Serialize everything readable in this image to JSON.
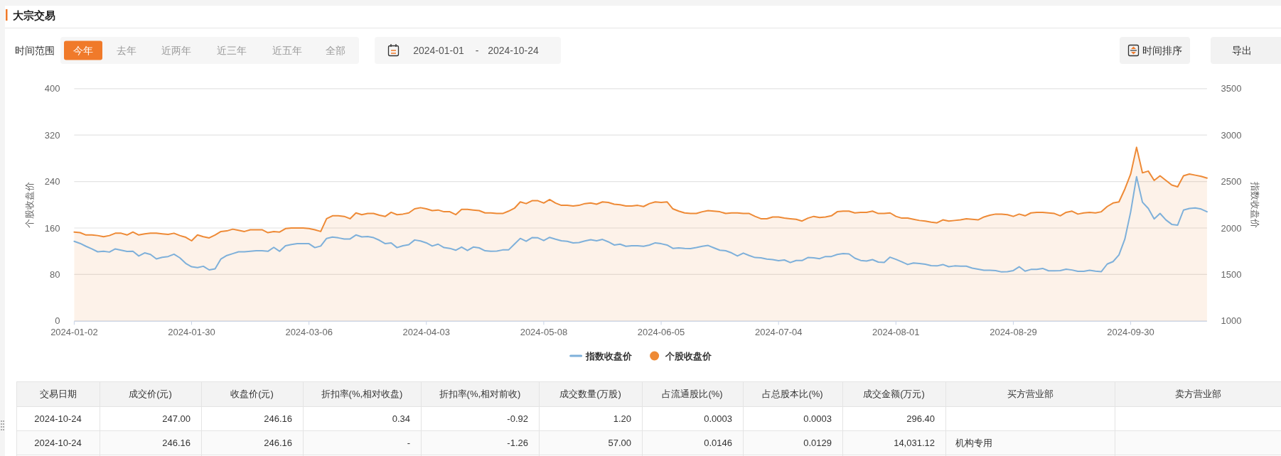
{
  "chart_data": [
    {
      "type": "line",
      "title": "大宗交易",
      "annotations": [
        "时间范围",
        "今年",
        "去年",
        "近两年",
        "近三年",
        "近五年",
        "全部",
        "2024-01-01",
        "-",
        "2024-10-24",
        "时间排序",
        "导出"
      ],
      "categories": [
        "2024-01-02",
        null,
        null,
        null,
        null,
        null,
        null,
        null,
        null,
        null,
        null,
        null,
        null,
        null,
        null,
        null,
        null,
        null,
        null,
        null,
        "2024-01-30",
        null,
        null,
        null,
        null,
        null,
        null,
        null,
        null,
        null,
        null,
        null,
        null,
        null,
        null,
        null,
        null,
        null,
        null,
        null,
        "2024-03-06",
        null,
        null,
        null,
        null,
        null,
        null,
        null,
        null,
        null,
        null,
        null,
        null,
        null,
        null,
        null,
        null,
        null,
        null,
        null,
        "2024-04-03",
        null,
        null,
        null,
        null,
        null,
        null,
        null,
        null,
        null,
        null,
        null,
        null,
        null,
        null,
        null,
        null,
        null,
        null,
        null,
        "2024-05-08",
        null,
        null,
        null,
        null,
        null,
        null,
        null,
        null,
        null,
        null,
        null,
        null,
        null,
        null,
        null,
        null,
        null,
        null,
        null,
        "2024-06-05",
        null,
        null,
        null,
        null,
        null,
        null,
        null,
        null,
        null,
        null,
        null,
        null,
        null,
        null,
        null,
        null,
        null,
        null,
        null,
        "2024-07-04",
        null,
        null,
        null,
        null,
        null,
        null,
        null,
        null,
        null,
        null,
        null,
        null,
        null,
        null,
        null,
        null,
        null,
        null,
        null,
        "2024-08-01",
        null,
        null,
        null,
        null,
        null,
        null,
        null,
        null,
        null,
        null,
        null,
        null,
        null,
        null,
        null,
        null,
        null,
        null,
        null,
        "2024-08-29",
        null,
        null,
        null,
        null,
        null,
        null,
        null,
        null,
        null,
        null,
        null,
        null,
        null,
        null,
        null,
        null,
        null,
        null,
        null,
        "2024-09-30",
        null,
        null,
        null,
        null,
        null,
        null,
        null,
        null,
        null,
        null,
        null,
        null,
        null
      ],
      "series": [
        {
          "name": "指数收盘价",
          "type": "line",
          "axis": "y2",
          "color": "#7eb0da",
          "values": [
            1857,
            1834,
            1803,
            1775,
            1744,
            1749,
            1741,
            1775,
            1761,
            1747,
            1749,
            1699,
            1732,
            1715,
            1667,
            1684,
            1693,
            1718,
            1679,
            1619,
            1583,
            1574,
            1588,
            1549,
            1560,
            1667,
            1704,
            1724,
            1744,
            1744,
            1749,
            1755,
            1755,
            1749,
            1792,
            1749,
            1809,
            1823,
            1831,
            1831,
            1831,
            1789,
            1806,
            1888,
            1902,
            1894,
            1882,
            1882,
            1925,
            1905,
            1908,
            1896,
            1868,
            1831,
            1840,
            1789,
            1809,
            1820,
            1871,
            1860,
            1840,
            1806,
            1826,
            1789,
            1781,
            1761,
            1795,
            1758,
            1795,
            1786,
            1755,
            1749,
            1752,
            1764,
            1764,
            1826,
            1888,
            1857,
            1896,
            1894,
            1865,
            1899,
            1880,
            1863,
            1857,
            1840,
            1843,
            1860,
            1874,
            1863,
            1877,
            1851,
            1817,
            1826,
            1803,
            1809,
            1809,
            1803,
            1817,
            1840,
            1831,
            1817,
            1781,
            1786,
            1781,
            1778,
            1789,
            1803,
            1812,
            1786,
            1761,
            1755,
            1732,
            1699,
            1730,
            1704,
            1682,
            1679,
            1665,
            1659,
            1648,
            1656,
            1628,
            1650,
            1650,
            1682,
            1679,
            1670,
            1693,
            1693,
            1715,
            1724,
            1721,
            1675,
            1651,
            1645,
            1660,
            1633,
            1630,
            1686,
            1663,
            1636,
            1607,
            1624,
            1618,
            1610,
            1595,
            1592,
            1607,
            1583,
            1592,
            1589,
            1589,
            1568,
            1557,
            1545,
            1545,
            1542,
            1527,
            1530,
            1542,
            1583,
            1536,
            1554,
            1554,
            1565,
            1539,
            1539,
            1542,
            1557,
            1548,
            1533,
            1533,
            1545,
            1536,
            1530,
            1612,
            1639,
            1710,
            1880,
            2175,
            2552,
            2278,
            2210,
            2098,
            2157,
            2087,
            2039,
            2031,
            2193,
            2210,
            2216,
            2204,
            2175
          ]
        },
        {
          "name": "个股收盘价",
          "type": "area",
          "color": "#ee8a36",
          "values": [
            153,
            152,
            148,
            148,
            147,
            145,
            147,
            151,
            151,
            148,
            153,
            148,
            150,
            151,
            151,
            150,
            149,
            151,
            147,
            144,
            138,
            148,
            145,
            143,
            148,
            154,
            155,
            158,
            156,
            154,
            157,
            157,
            157,
            152,
            154,
            153,
            159,
            160,
            160,
            160,
            159,
            157,
            154,
            176,
            181,
            181,
            180,
            176,
            186,
            183,
            185,
            185,
            182,
            180,
            187,
            183,
            184,
            186,
            193,
            195,
            193,
            190,
            191,
            188,
            188,
            183,
            192,
            192,
            191,
            190,
            186,
            186,
            185,
            185,
            189,
            194,
            205,
            202,
            207,
            207,
            203,
            209,
            203,
            199,
            199,
            198,
            199,
            202,
            203,
            201,
            205,
            204,
            201,
            200,
            198,
            198,
            199,
            197,
            202,
            205,
            204,
            205,
            193,
            189,
            186,
            185,
            185,
            188,
            190,
            189,
            188,
            185,
            186,
            186,
            185,
            185,
            180,
            176,
            176,
            179,
            179,
            177,
            176,
            175,
            172,
            177,
            180,
            178,
            179,
            181,
            188,
            189,
            189,
            186,
            187,
            187,
            189,
            185,
            185,
            186,
            180,
            177,
            177,
            175,
            173,
            172,
            170,
            169,
            174,
            172,
            173,
            174,
            176,
            175,
            174,
            179,
            182,
            184,
            184,
            183,
            180,
            184,
            181,
            186,
            187,
            187,
            186,
            185,
            181,
            187,
            189,
            184,
            186,
            187,
            186,
            188,
            197,
            203,
            205,
            227,
            253,
            299,
            255,
            258,
            242,
            250,
            242,
            234,
            231,
            250,
            253,
            251,
            249,
            246
          ]
        }
      ],
      "ylabel": "个股收盘价",
      "y2label": "指数收盘价",
      "ylim": [
        0,
        400
      ],
      "yticks": [
        0,
        80,
        160,
        240,
        320,
        400
      ],
      "y2lim": [
        1000,
        3500
      ],
      "y2ticks": [
        1000,
        1500,
        2000,
        2500,
        3000,
        3500
      ],
      "grid": "y",
      "legend": "bottom"
    },
    {
      "type": "other",
      "categories": [
        "交易日期",
        "成交价(元)",
        "收盘价(元)",
        "折扣率(%,相对收盘)",
        "折扣率(%,相对前收)",
        "成交数量(万股)",
        "占流通股比(%)",
        "占总股本比(%)",
        "成交金额(万元)",
        "买方营业部",
        "卖方营业部"
      ],
      "cell_labels": [
        [
          "2024-10-24",
          "247.00",
          "246.16",
          "0.34",
          "-0.92",
          "1.20",
          "0.0003",
          "0.0003",
          "296.40",
          null,
          null
        ],
        [
          "2024-10-24",
          "246.16",
          "246.16",
          "-",
          "-1.26",
          "57.00",
          "0.0146",
          "0.0129",
          "14,031.12",
          "机构专用",
          null
        ]
      ]
    }
  ]
}
